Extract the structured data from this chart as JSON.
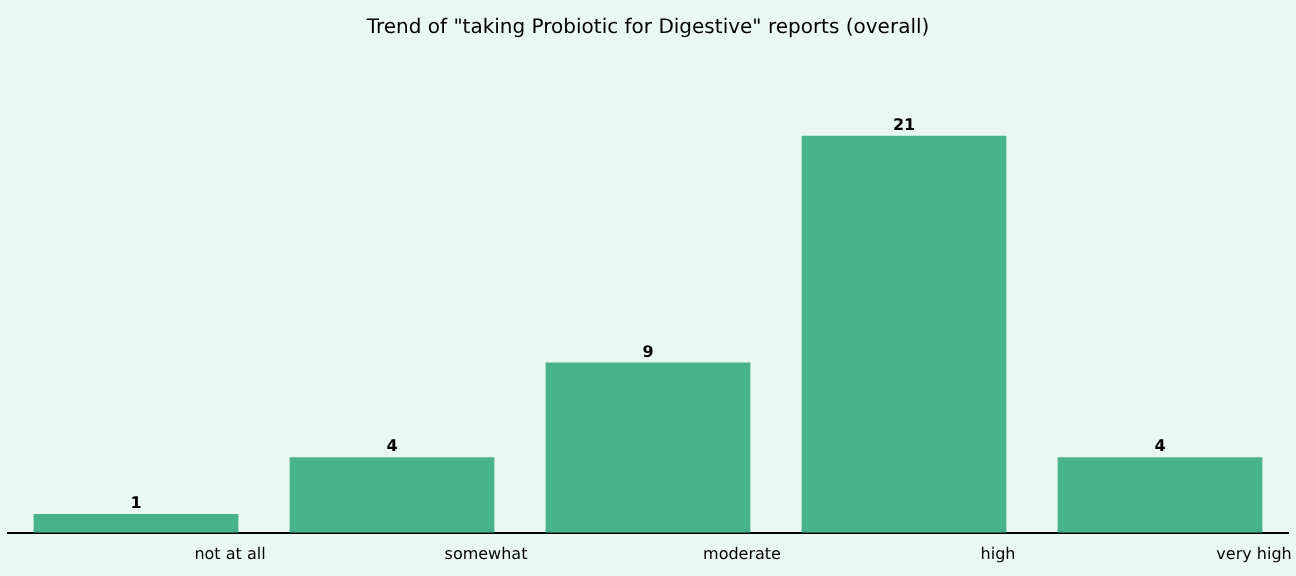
{
  "chart_data": {
    "type": "bar",
    "title": "Trend of \"taking Probiotic for Digestive\" reports (overall)",
    "categories": [
      "not at all",
      "somewhat",
      "moderate",
      "high",
      "very high"
    ],
    "values": [
      1,
      4,
      9,
      21,
      4
    ],
    "color": "#48b38a",
    "data_labels": true,
    "grid": false,
    "legend": false
  }
}
